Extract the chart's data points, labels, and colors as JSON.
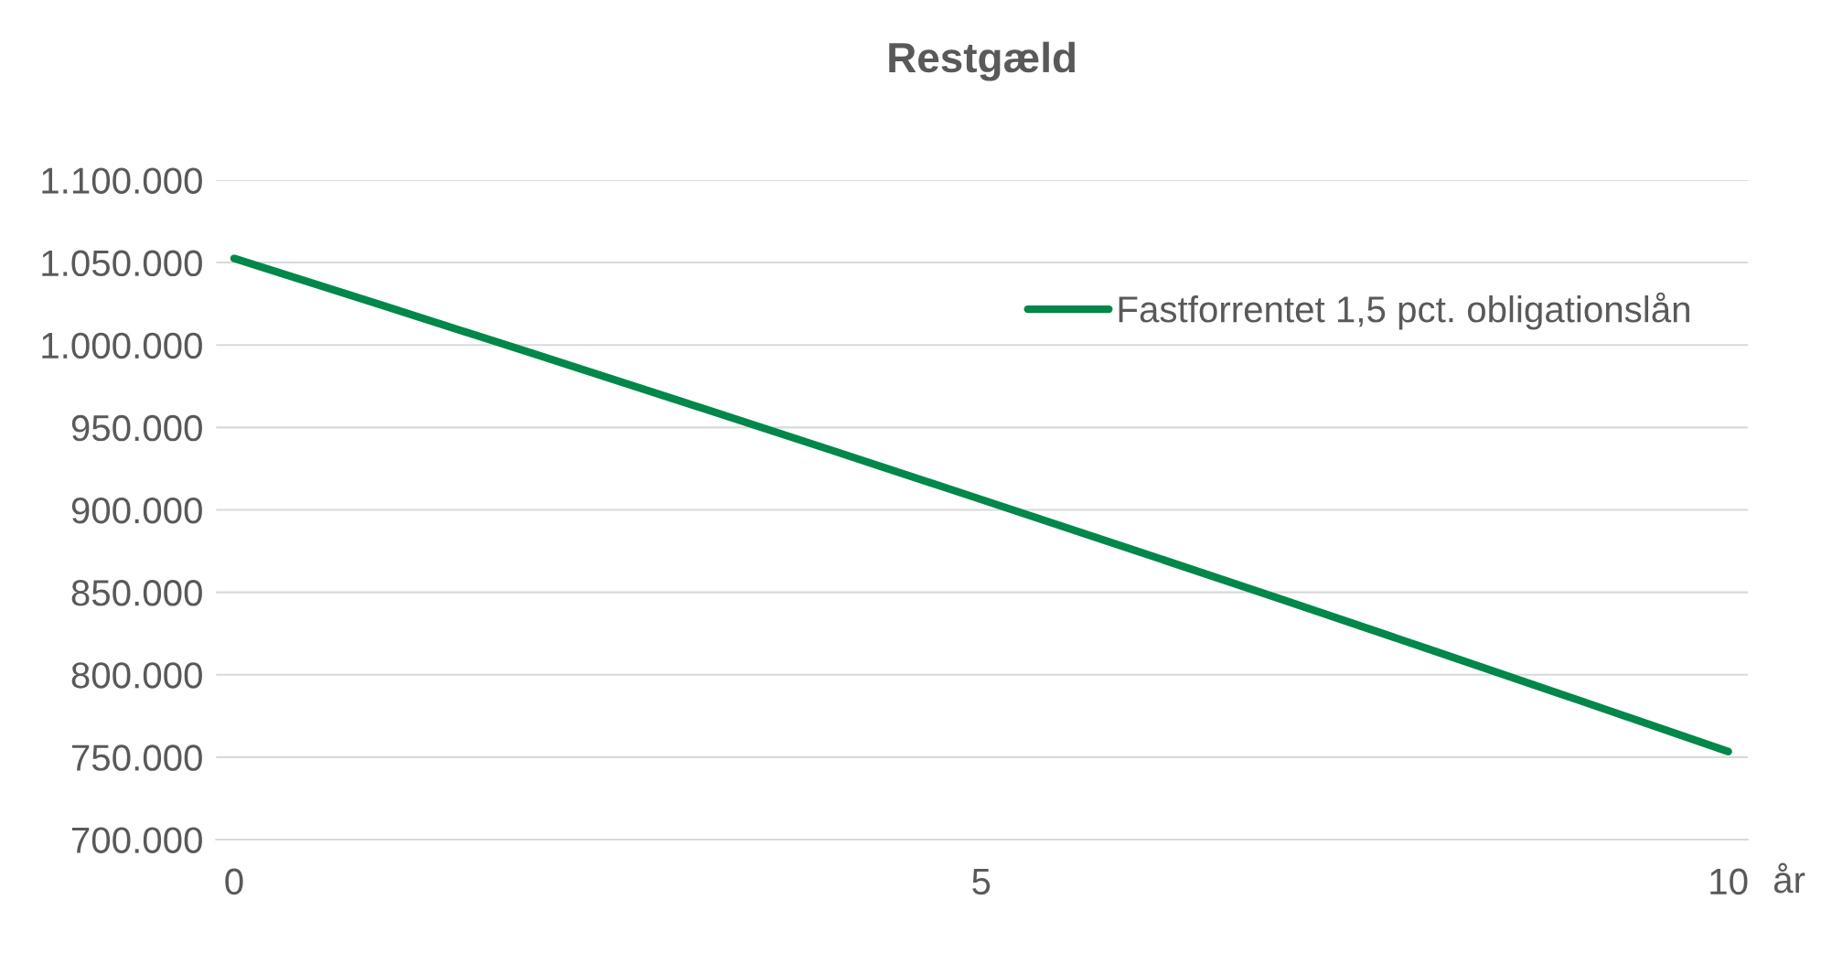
{
  "chart_data": {
    "type": "line",
    "title": "Restgæld",
    "xlabel": "år",
    "x": [
      0,
      1,
      2,
      3,
      4,
      5,
      6,
      7,
      8,
      9,
      10
    ],
    "series": [
      {
        "name": "Fastforrentet 1,5 pct. obligationslån",
        "color": "#00874a",
        "values": [
          1052500,
          1023800,
          994800,
          965600,
          936100,
          906300,
          876300,
          846000,
          815400,
          784500,
          753400
        ]
      }
    ],
    "xlim": [
      -0.12,
      10.13
    ],
    "xticks": [
      0,
      5,
      10
    ],
    "ylim": [
      700000,
      1100000
    ],
    "yticks": [
      {
        "value": 700000,
        "label": "700.000"
      },
      {
        "value": 750000,
        "label": "750.000"
      },
      {
        "value": 800000,
        "label": "800.000"
      },
      {
        "value": 850000,
        "label": "850.000"
      },
      {
        "value": 900000,
        "label": "900.000"
      },
      {
        "value": 950000,
        "label": "950.000"
      },
      {
        "value": 1000000,
        "label": "1.000.000"
      },
      {
        "value": 1050000,
        "label": "1.050.000"
      },
      {
        "value": 1100000,
        "label": "1.100.000"
      }
    ],
    "grid": "y",
    "legend": "top right",
    "marker": "none",
    "line_style": "solid"
  }
}
